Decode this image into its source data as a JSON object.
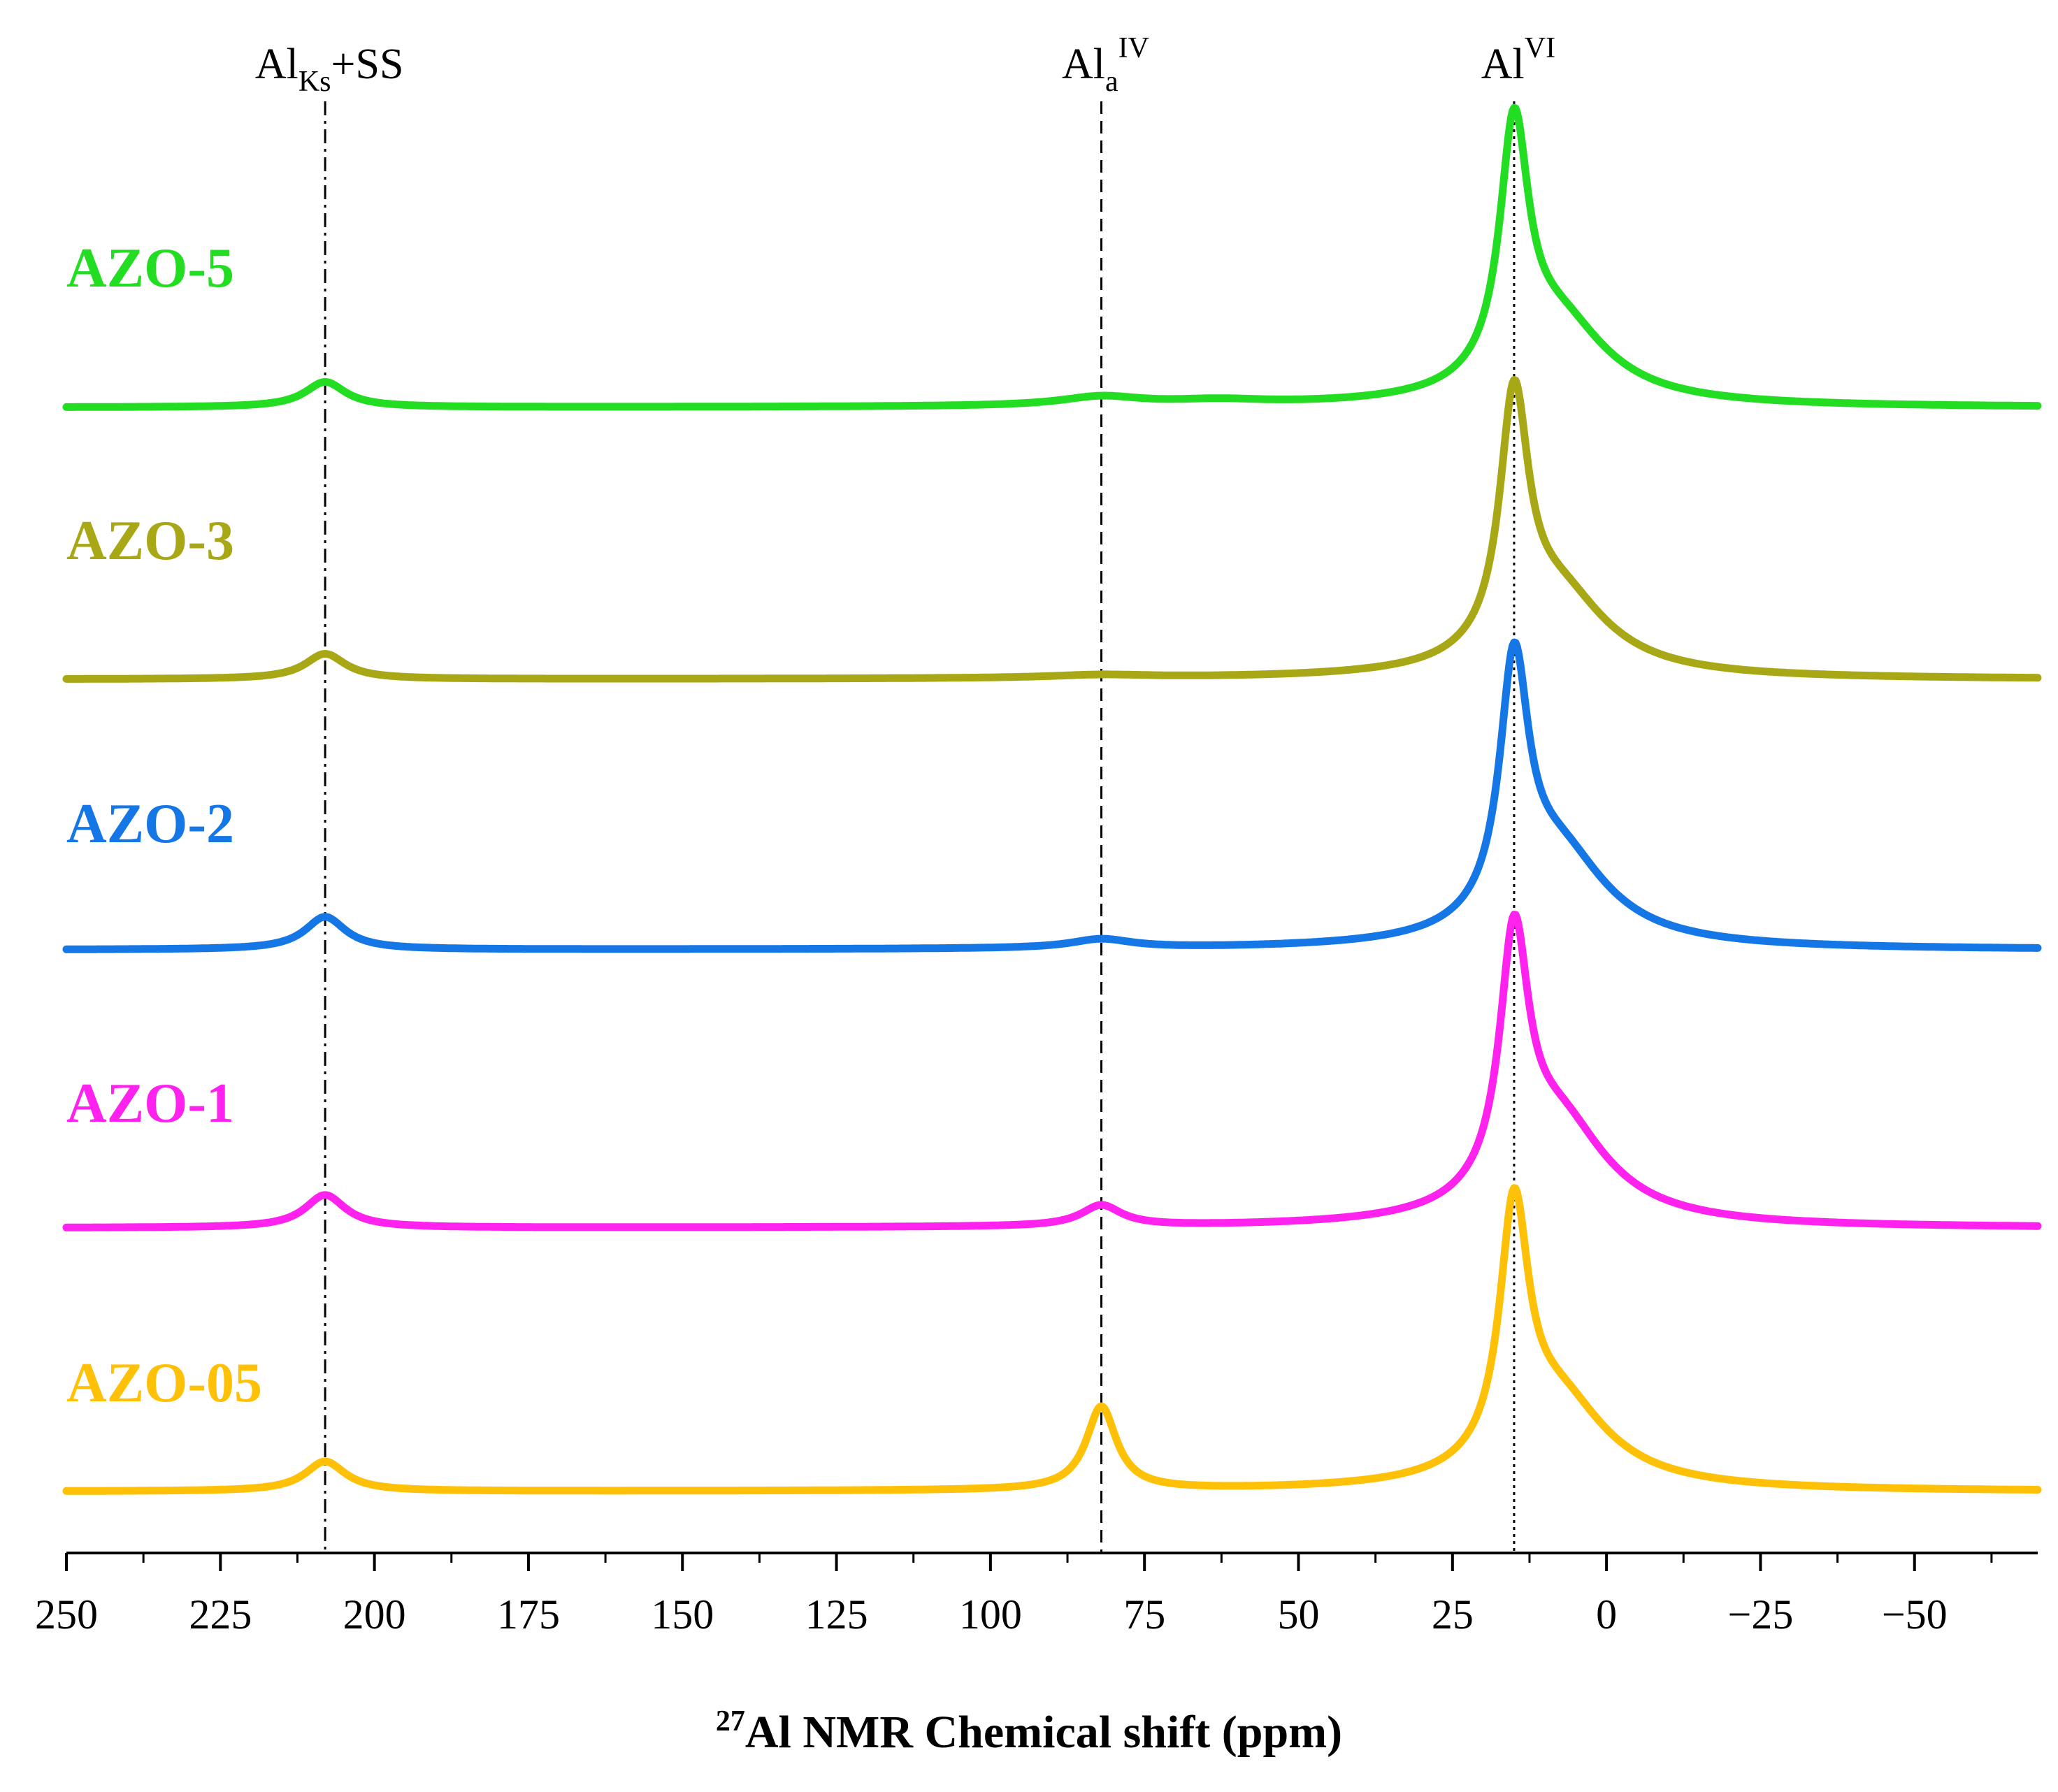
{
  "chart_data": {
    "type": "line",
    "title": "",
    "xlabel": {
      "sup": "27",
      "text": "Al NMR Chemical shift (ppm)"
    },
    "ylabel": "",
    "xlim": [
      250,
      -70
    ],
    "x_ticks": [
      250,
      225,
      200,
      175,
      150,
      125,
      100,
      75,
      50,
      25,
      0,
      -25,
      -50
    ],
    "x_tick_labels": [
      "250",
      "225",
      "200",
      "175",
      "150",
      "125",
      "100",
      "75",
      "50",
      "25",
      "0",
      "−25",
      "−50"
    ],
    "x_minor_step": 12.5,
    "grid": false,
    "stacked_offset": true,
    "markers": [
      {
        "x": 208,
        "style": "dash-dot",
        "text": "Al",
        "sub": "Ks",
        "suffix": "+SS",
        "sup": ""
      },
      {
        "x": 82,
        "style": "dashed",
        "text": "Al",
        "sub": "a",
        "suffix": "",
        "sup": "IV"
      },
      {
        "x": 15,
        "style": "dotted",
        "text": "Al",
        "sub": "",
        "suffix": "",
        "sup": "VI"
      }
    ],
    "series": [
      {
        "name": "AZO-5",
        "color": "#22dd22",
        "baseline": 0,
        "peaks": [
          {
            "x": 208,
            "h": 0.085,
            "w": 4
          },
          {
            "x": 82,
            "h": 0.03,
            "w": 8
          },
          {
            "x": 63,
            "h": 0.015,
            "w": 10
          },
          {
            "x": 15,
            "h": 0.82,
            "w": 2.8
          },
          {
            "x": 8,
            "h": 0.28,
            "w": 10
          }
        ]
      },
      {
        "name": "AZO-3",
        "color": "#a8a816",
        "baseline": 0,
        "peaks": [
          {
            "x": 208,
            "h": 0.085,
            "w": 4
          },
          {
            "x": 82,
            "h": 0.01,
            "w": 10
          },
          {
            "x": 15,
            "h": 0.82,
            "w": 2.8
          },
          {
            "x": 8,
            "h": 0.28,
            "w": 10
          }
        ]
      },
      {
        "name": "AZO-2",
        "color": "#1577e6",
        "baseline": 0,
        "peaks": [
          {
            "x": 208,
            "h": 0.11,
            "w": 4
          },
          {
            "x": 82,
            "h": 0.03,
            "w": 6
          },
          {
            "x": 15,
            "h": 0.82,
            "w": 2.8
          },
          {
            "x": 8,
            "h": 0.32,
            "w": 10
          }
        ]
      },
      {
        "name": "AZO-1",
        "color": "#ff22ee",
        "baseline": 0,
        "peaks": [
          {
            "x": 208,
            "h": 0.11,
            "w": 4
          },
          {
            "x": 82,
            "h": 0.07,
            "w": 4
          },
          {
            "x": 15,
            "h": 0.82,
            "w": 2.8
          },
          {
            "x": 8,
            "h": 0.35,
            "w": 10
          }
        ]
      },
      {
        "name": "AZO-05",
        "color": "#ffc107",
        "baseline": 0,
        "peaks": [
          {
            "x": 208,
            "h": 0.1,
            "w": 4
          },
          {
            "x": 82,
            "h": 0.28,
            "w": 3
          },
          {
            "x": 15,
            "h": 0.82,
            "w": 2.8
          },
          {
            "x": 8,
            "h": 0.3,
            "w": 10
          }
        ]
      }
    ]
  }
}
